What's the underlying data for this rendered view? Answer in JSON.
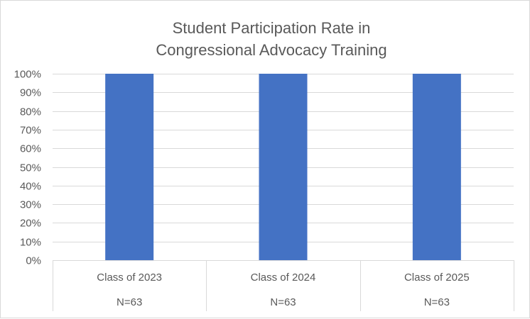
{
  "chart_data": {
    "type": "bar",
    "title_lines": [
      "Student  Participation Rate in",
      "Congressional Advocacy Training"
    ],
    "categories": [
      "Class of 2023",
      "Class of 2024",
      "Class of 2025"
    ],
    "sub_labels": [
      "N=63",
      "N=63",
      "N=63"
    ],
    "values": [
      100,
      100,
      100
    ],
    "ylim": [
      0,
      100
    ],
    "y_ticks": [
      0,
      10,
      20,
      30,
      40,
      50,
      60,
      70,
      80,
      90,
      100
    ],
    "y_tick_labels": [
      "0%",
      "10%",
      "20%",
      "30%",
      "40%",
      "50%",
      "60%",
      "70%",
      "80%",
      "90%",
      "100%"
    ],
    "xlabel": "",
    "ylabel": "",
    "grid": true,
    "legend": "none",
    "colors": {
      "bar": "#4472C4",
      "grid": "#d9d9d9",
      "text": "#595959"
    }
  }
}
